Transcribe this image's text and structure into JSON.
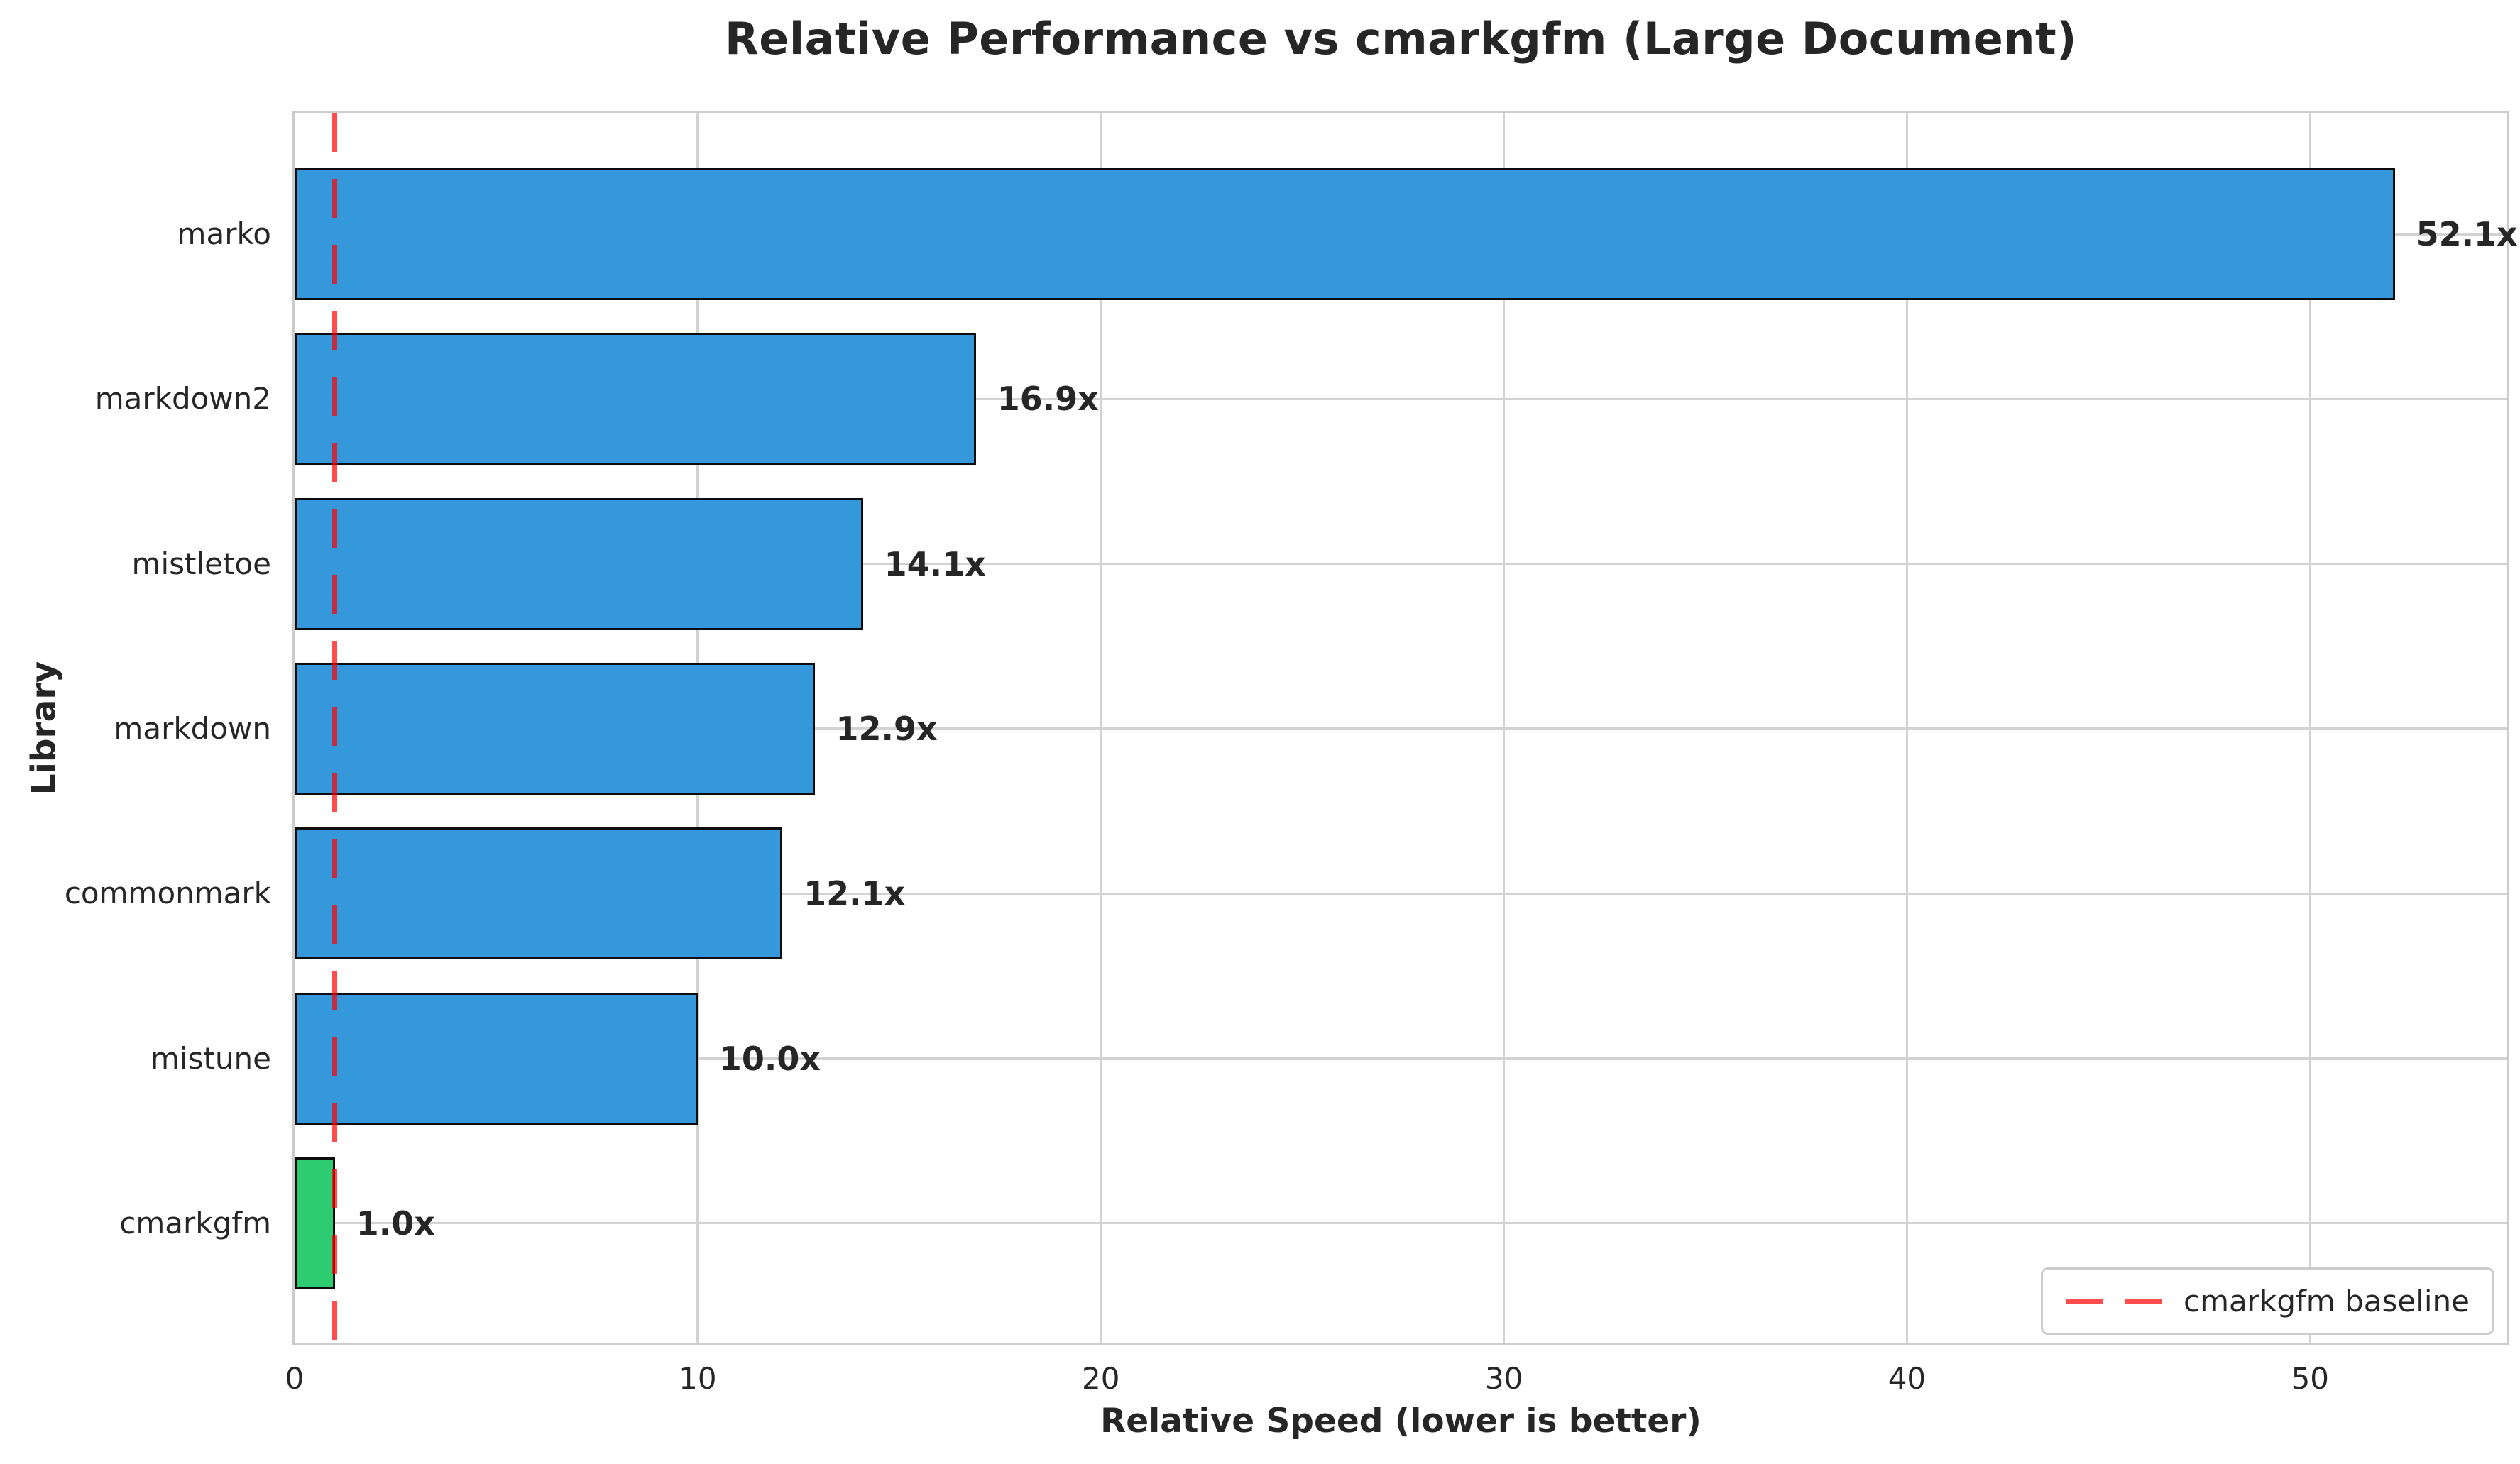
{
  "chart": {
    "title": "Relative Performance vs cmarkgfm (Large Document)",
    "xlabel": "Relative Speed (lower is better)",
    "ylabel": "Library",
    "legend": {
      "label": "cmarkgfm baseline"
    }
  },
  "chart_data": {
    "type": "bar",
    "orientation": "horizontal",
    "title": "Relative Performance vs cmarkgfm (Large Document)",
    "xlabel": "Relative Speed (lower is better)",
    "ylabel": "Library",
    "categories": [
      "marko",
      "markdown2",
      "mistletoe",
      "markdown",
      "commonmark",
      "mistune",
      "cmarkgfm"
    ],
    "values": [
      52.1,
      16.9,
      14.1,
      12.9,
      12.1,
      10.0,
      1.0
    ],
    "value_labels": [
      "52.1x",
      "16.9x",
      "14.1x",
      "12.9x",
      "12.1x",
      "10.0x",
      "1.0x"
    ],
    "bar_colors": [
      "#3498db",
      "#3498db",
      "#3498db",
      "#3498db",
      "#3498db",
      "#3498db",
      "#2ecc71"
    ],
    "bar_edge_color": "#0d0d0d",
    "x_ticks": [
      0,
      10,
      20,
      30,
      40,
      50
    ],
    "x_tick_labels": [
      "0",
      "10",
      "20",
      "30",
      "40",
      "50"
    ],
    "xlim": [
      0,
      54.89
    ],
    "grid": true,
    "legend_position": "lower right",
    "baseline": {
      "x": 1.0,
      "label": "cmarkgfm baseline",
      "color": "rgba(255,0,0,0.7)",
      "style": "dashed"
    }
  },
  "colors": {
    "bar_blue": "#3498db",
    "bar_green": "#2ecc71",
    "baseline_red": "rgba(255,0,0,0.7)",
    "grid_gray": "#d2d2d2",
    "spine_gray": "#cccccc",
    "text_dark": "#262626"
  }
}
